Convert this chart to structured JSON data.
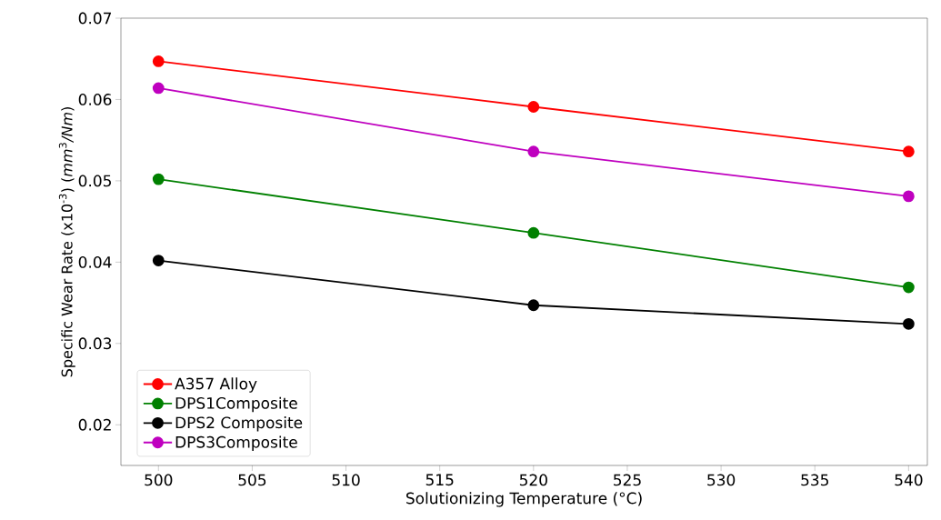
{
  "chart_data": {
    "type": "line",
    "xlabel": "Solutionizing Temperature (°C)",
    "ylabel": "Specific Wear Rate (x10$^{-3}$) (*mm*$^{3}$*/Nm*)",
    "x": [
      500,
      520,
      540
    ],
    "series": [
      {
        "name": "A357 Alloy",
        "color": "#ff0000",
        "values": [
          0.0647,
          0.0591,
          0.0536
        ]
      },
      {
        "name": "DPS1Composite",
        "color": "#008000",
        "values": [
          0.0502,
          0.0436,
          0.0369
        ]
      },
      {
        "name": "DPS2 Composite",
        "color": "#000000",
        "values": [
          0.0402,
          0.0347,
          0.0324
        ]
      },
      {
        "name": "DPS3Composite",
        "color": "#bf00bf",
        "values": [
          0.0614,
          0.0536,
          0.0481
        ]
      }
    ],
    "xlim": [
      498,
      541
    ],
    "ylim": [
      0.015,
      0.07
    ],
    "xticks": [
      500,
      505,
      510,
      515,
      520,
      525,
      530,
      535,
      540
    ],
    "yticks": [
      0.02,
      0.03,
      0.04,
      0.05,
      0.06,
      0.07
    ],
    "legend": "bottom left",
    "marker": "circle",
    "line_style": "solid",
    "grid": false
  }
}
